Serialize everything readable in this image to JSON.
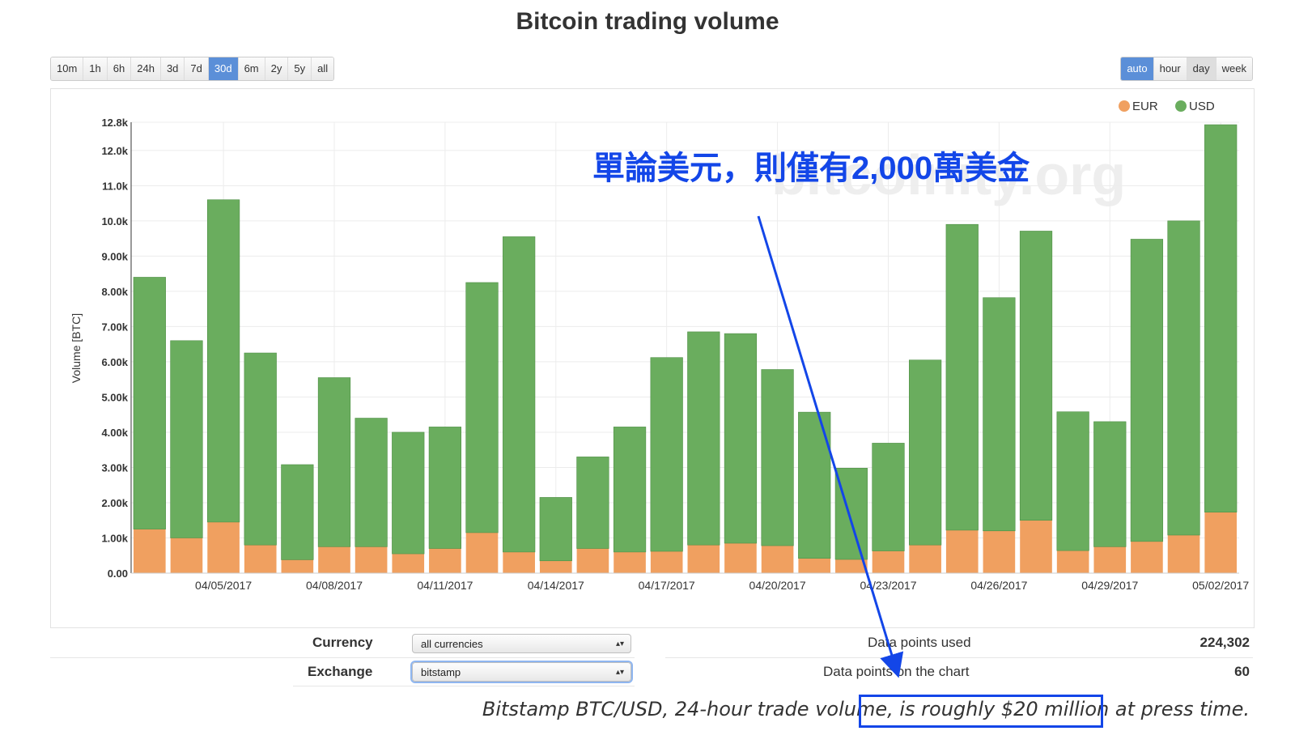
{
  "title": "Bitcoin trading volume",
  "range_buttons": [
    {
      "label": "10m",
      "state": "normal"
    },
    {
      "label": "1h",
      "state": "normal"
    },
    {
      "label": "6h",
      "state": "normal"
    },
    {
      "label": "24h",
      "state": "normal"
    },
    {
      "label": "3d",
      "state": "normal"
    },
    {
      "label": "7d",
      "state": "normal"
    },
    {
      "label": "30d",
      "state": "active"
    },
    {
      "label": "6m",
      "state": "normal"
    },
    {
      "label": "2y",
      "state": "normal"
    },
    {
      "label": "5y",
      "state": "normal"
    },
    {
      "label": "all",
      "state": "normal"
    }
  ],
  "interval_buttons": [
    {
      "label": "auto",
      "state": "active"
    },
    {
      "label": "hour",
      "state": "normal"
    },
    {
      "label": "day",
      "state": "pressed"
    },
    {
      "label": "week",
      "state": "normal"
    }
  ],
  "colors": {
    "eur": "#f0a060",
    "usd": "#6aad5e",
    "accent": "#5b8fd8",
    "annotation": "#1346e8"
  },
  "chart_data": {
    "type": "bar",
    "stacked": true,
    "ylabel": "Volume [BTC]",
    "xlabel": "",
    "ylim": [
      0,
      12800
    ],
    "y_ticks": [
      0,
      1000,
      2000,
      3000,
      4000,
      5000,
      6000,
      7000,
      8000,
      9000,
      10000,
      11000,
      12000,
      12800
    ],
    "y_tick_labels": [
      "0.00",
      "1.00k",
      "2.00k",
      "3.00k",
      "4.00k",
      "5.00k",
      "6.00k",
      "7.00k",
      "8.00k",
      "9.00k",
      "10.0k",
      "11.0k",
      "12.0k",
      "12.8k"
    ],
    "x_tick_labels": [
      {
        "index": 2.5,
        "label": "04/05/2017"
      },
      {
        "index": 5.5,
        "label": "04/08/2017"
      },
      {
        "index": 8.5,
        "label": "04/11/2017"
      },
      {
        "index": 11.5,
        "label": "04/14/2017"
      },
      {
        "index": 14.5,
        "label": "04/17/2017"
      },
      {
        "index": 17.5,
        "label": "04/20/2017"
      },
      {
        "index": 20.5,
        "label": "04/23/2017"
      },
      {
        "index": 23.5,
        "label": "04/26/2017"
      },
      {
        "index": 26.5,
        "label": "04/29/2017"
      },
      {
        "index": 29.5,
        "label": "05/02/2017"
      }
    ],
    "grid": true,
    "legend_position": "top-right",
    "watermark": "bitcoinity.org",
    "series": [
      {
        "name": "EUR",
        "color": "#f0a060",
        "values": [
          1250,
          1000,
          1450,
          800,
          380,
          750,
          750,
          550,
          700,
          1150,
          600,
          350,
          700,
          600,
          620,
          800,
          850,
          780,
          420,
          390,
          630,
          800,
          1220,
          1200,
          1500,
          640,
          750,
          900,
          1080,
          1730
        ]
      },
      {
        "name": "USD",
        "color": "#6aad5e",
        "values": [
          7150,
          5600,
          9150,
          5450,
          2700,
          4800,
          3650,
          3450,
          3450,
          7100,
          8950,
          1800,
          2600,
          3550,
          5500,
          6050,
          5950,
          5000,
          4150,
          2590,
          3060,
          5250,
          8680,
          6620,
          8210,
          3940,
          3550,
          8580,
          8920,
          11000
        ]
      }
    ]
  },
  "controls": {
    "currency_label": "Currency",
    "currency_value": "all currencies",
    "exchange_label": "Exchange",
    "exchange_value": "bitstamp",
    "points_used_label": "Data points used",
    "points_used_value": "224,302",
    "points_chart_label": "Data points on the chart",
    "points_chart_value": "60"
  },
  "annotation": "單論美元，則僅有2,000萬美金",
  "caption": "Bitstamp BTC/USD, 24-hour trade volume, is roughly $20 million at press time."
}
